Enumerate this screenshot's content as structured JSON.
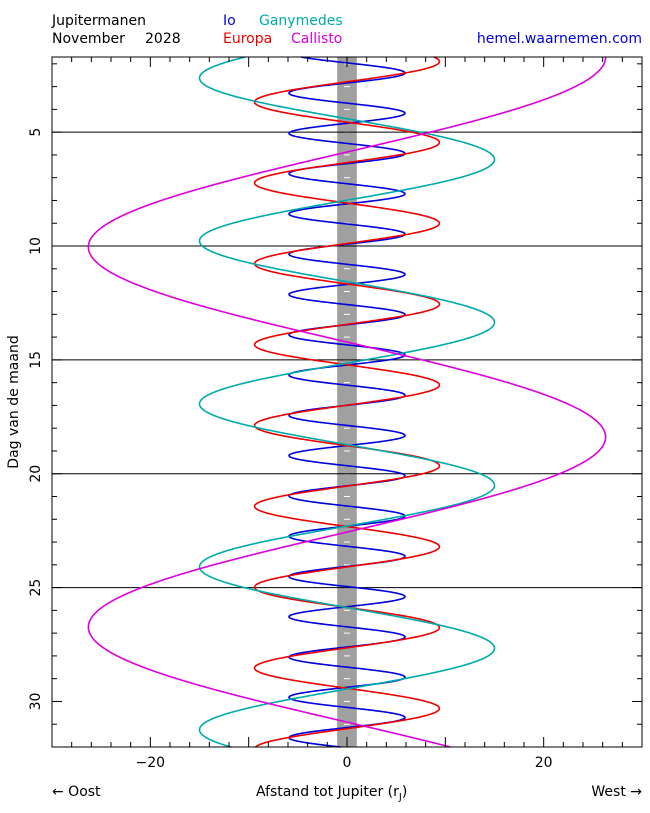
{
  "header": {
    "title_line1": "Jupitermanen",
    "title_line2_month": "November",
    "title_line2_year": "2028",
    "website": "hemel.waarnemen.com"
  },
  "legend": [
    {
      "label": "Io",
      "color": "#0000dd"
    },
    {
      "label": "Ganymedes",
      "color": "#00aaaa"
    },
    {
      "label": "Europa",
      "color": "#ee0000"
    },
    {
      "label": "Callisto",
      "color": "#dd00dd"
    }
  ],
  "footer": {
    "east_label": "← Oost",
    "west_label": "West →",
    "xlabel_main": "Afstand tot Jupiter (r",
    "xlabel_sub": "J",
    "xlabel_end": ")"
  },
  "chart_data": {
    "type": "line",
    "title": "Jupitermanen November 2028",
    "xlabel": "Afstand tot Jupiter (rJ)",
    "ylabel": "Dag van de maand",
    "xlim": [
      -30,
      30
    ],
    "ylim": [
      32,
      1.7
    ],
    "x_ticks": [
      -20,
      0,
      20
    ],
    "y_ticks": [
      5,
      10,
      15,
      20,
      25,
      30
    ],
    "gridlines_days": [
      5,
      10,
      15,
      20,
      25
    ],
    "jupiter_band_halfwidth": 1,
    "series": [
      {
        "name": "Io",
        "color": "#0000dd",
        "amplitude": 5.9,
        "period_days": 1.769,
        "max_day": 2.4
      },
      {
        "name": "Europa",
        "color": "#ee0000",
        "amplitude": 9.4,
        "period_days": 3.551,
        "max_day": 1.9
      },
      {
        "name": "Ganymedes",
        "color": "#00aaaa",
        "amplitude": 15.0,
        "period_days": 7.155,
        "max_day": 6.2
      },
      {
        "name": "Callisto",
        "color": "#dd00dd",
        "amplitude": 26.3,
        "period_days": 16.69,
        "max_day": 1.7
      }
    ]
  }
}
